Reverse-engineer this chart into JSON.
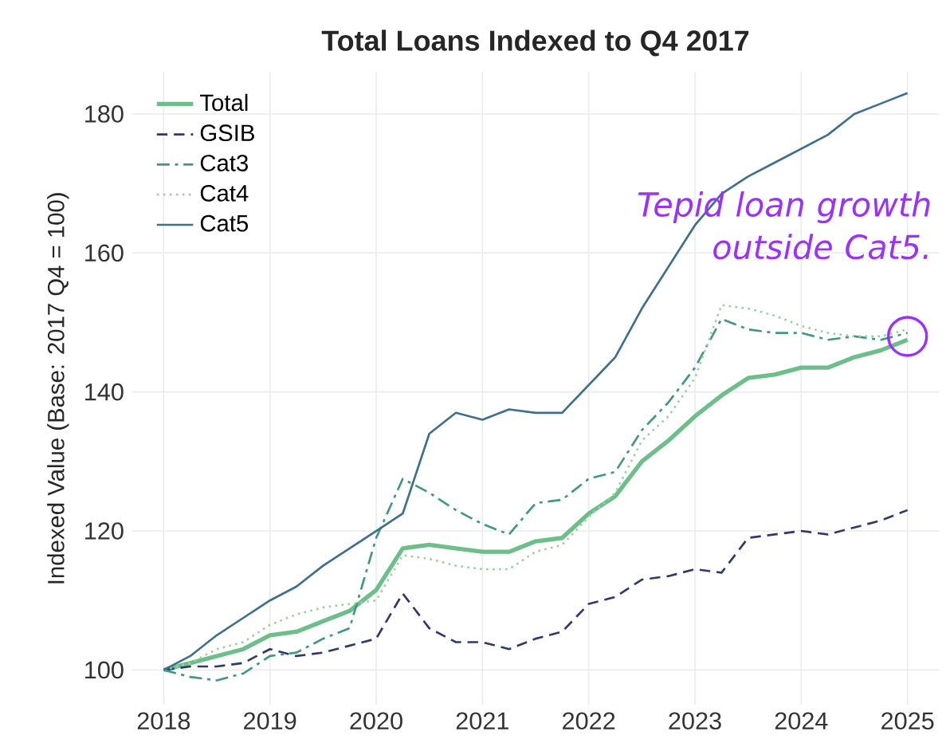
{
  "chart_data": {
    "type": "line",
    "title": "Total Loans Indexed to Q4 2017",
    "ylabel": "Indexed Value (Base: 2017 Q4 = 100)",
    "x": [
      2018,
      2018.25,
      2018.5,
      2018.75,
      2019,
      2019.25,
      2019.5,
      2019.75,
      2020,
      2020.25,
      2020.5,
      2020.75,
      2021,
      2021.25,
      2021.5,
      2021.75,
      2022,
      2022.25,
      2022.5,
      2022.75,
      2023,
      2023.25,
      2023.5,
      2023.75,
      2024,
      2024.25,
      2024.5,
      2024.75,
      2025
    ],
    "series": [
      {
        "name": "Total",
        "color": "#6dbf8a",
        "line_style": "solid",
        "values": [
          100,
          101,
          102,
          103,
          105,
          105.5,
          107,
          108.5,
          111.5,
          117.5,
          118,
          117.5,
          117,
          117,
          118.5,
          119,
          122.5,
          125,
          130,
          133,
          136.5,
          139.5,
          142,
          142.5,
          143.5,
          143.5,
          145,
          146,
          147.5
        ]
      },
      {
        "name": "GSIB",
        "color": "#2e3a6e",
        "line_style": "dashed",
        "values": [
          100,
          100.5,
          100.5,
          101,
          103,
          102,
          102.5,
          103.5,
          104.5,
          111,
          106,
          104,
          104,
          103,
          104.5,
          105.5,
          109.5,
          110.5,
          113,
          113.5,
          114.5,
          114,
          119,
          119.5,
          120,
          119.5,
          120.5,
          121.5,
          123
        ]
      },
      {
        "name": "Cat3",
        "color": "#3f9a7a",
        "line_style": "dashdot",
        "values": [
          100,
          99,
          98.5,
          99.5,
          102,
          102.5,
          104.5,
          106,
          119,
          127.5,
          125.5,
          123,
          121,
          119.5,
          124,
          124.5,
          127.5,
          128.5,
          134.5,
          138.5,
          143.5,
          150.5,
          149,
          148.5,
          148.5,
          147.5,
          148,
          147.5,
          148.5
        ]
      },
      {
        "name": "Cat4",
        "color": "#9fd0a0",
        "line_style": "dotted",
        "values": [
          100,
          101,
          103,
          104,
          106.5,
          108,
          109,
          109.5,
          110,
          116.5,
          116,
          115,
          114.5,
          114.5,
          117,
          118,
          122,
          125.5,
          133,
          136.5,
          142,
          152.5,
          152,
          151,
          149.5,
          148.5,
          148,
          148,
          149
        ]
      },
      {
        "name": "Cat5",
        "color": "#3f6f8f",
        "line_style": "solid",
        "values": [
          100,
          102,
          105,
          107.5,
          110,
          112,
          115,
          117.5,
          120,
          122.5,
          134,
          137,
          136,
          137.5,
          137,
          137,
          141,
          145,
          152,
          158,
          164,
          168.5,
          171,
          173,
          175,
          177,
          180,
          181.5,
          183
        ]
      }
    ],
    "xlim": [
      2017.7,
      2025.3
    ],
    "xticks": [
      2018,
      2019,
      2020,
      2021,
      2022,
      2023,
      2024,
      2025
    ],
    "ylim": [
      95,
      186
    ],
    "yticks": [
      100,
      120,
      140,
      160,
      180
    ],
    "grid": true,
    "legend": "top left",
    "marker": "none",
    "annotations": [
      {
        "text": "Tepid loan growth outside Cat5.",
        "x": 2025,
        "y": 148
      }
    ]
  }
}
